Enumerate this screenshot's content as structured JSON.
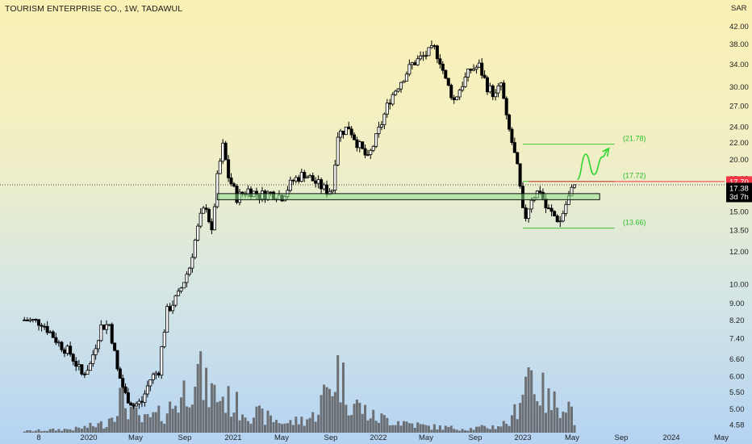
{
  "header": {
    "title": "TOURISM ENTERPRISE CO., 1W, TADAWUL"
  },
  "chart_data": {
    "type": "candlestick",
    "currency": "SAR",
    "y_scale": "log",
    "ylim": [
      4.5,
      44
    ],
    "y_ticks": [
      "42.00",
      "38.00",
      "34.00",
      "30.00",
      "27.00",
      "24.00",
      "22.00",
      "20.00",
      "18.00",
      "15.00",
      "13.50",
      "12.00",
      "10.00",
      "9.00",
      "8.20",
      "7.40",
      "6.60",
      "6.00",
      "5.50",
      "5.00",
      "4.58"
    ],
    "x_ticks": [
      {
        "label": "8",
        "date": "2019-09-01"
      },
      {
        "label": "2020",
        "date": "2020-01-01"
      },
      {
        "label": "May",
        "date": "2020-05-01"
      },
      {
        "label": "Sep",
        "date": "2020-09-01"
      },
      {
        "label": "2021",
        "date": "2021-01-01"
      },
      {
        "label": "May",
        "date": "2021-05-01"
      },
      {
        "label": "Sep",
        "date": "2021-09-01"
      },
      {
        "label": "2022",
        "date": "2022-01-01"
      },
      {
        "label": "May",
        "date": "2022-05-01"
      },
      {
        "label": "Sep",
        "date": "2022-09-01"
      },
      {
        "label": "2023",
        "date": "2023-01-01"
      },
      {
        "label": "May",
        "date": "2023-05-01"
      },
      {
        "label": "Sep",
        "date": "2023-09-01"
      },
      {
        "label": "2024",
        "date": "2024-01-01"
      },
      {
        "label": "May",
        "date": "2024-05-01"
      }
    ],
    "price_keypoints": [
      [
        "2019-07-28",
        8.2
      ],
      [
        "2019-09-08",
        8.1
      ],
      [
        "2019-10-20",
        7.2
      ],
      [
        "2019-11-17",
        6.8
      ],
      [
        "2019-12-15",
        6.05
      ],
      [
        "2020-01-05",
        6.4
      ],
      [
        "2020-02-02",
        7.9
      ],
      [
        "2020-02-23",
        8.0
      ],
      [
        "2020-03-15",
        6.2
      ],
      [
        "2020-04-05",
        5.4
      ],
      [
        "2020-04-26",
        5.1
      ],
      [
        "2020-05-17",
        5.2
      ],
      [
        "2020-06-07",
        5.9
      ],
      [
        "2020-06-28",
        6.2
      ],
      [
        "2020-07-19",
        8.6
      ],
      [
        "2020-08-16",
        9.4
      ],
      [
        "2020-09-13",
        11.0
      ],
      [
        "2020-10-11",
        14.5
      ],
      [
        "2020-10-25",
        15.5
      ],
      [
        "2020-11-08",
        13.2
      ],
      [
        "2020-11-22",
        18.0
      ],
      [
        "2020-12-06",
        21.5
      ],
      [
        "2020-12-20",
        18.2
      ],
      [
        "2021-01-10",
        16.2
      ],
      [
        "2021-02-07",
        16.9
      ],
      [
        "2021-03-07",
        16.4
      ],
      [
        "2021-04-04",
        16.6
      ],
      [
        "2021-05-02",
        16.3
      ],
      [
        "2021-05-30",
        17.8
      ],
      [
        "2021-06-27",
        18.5
      ],
      [
        "2021-07-25",
        17.6
      ],
      [
        "2021-08-22",
        16.8
      ],
      [
        "2021-09-05",
        17.0
      ],
      [
        "2021-09-19",
        23.0
      ],
      [
        "2021-10-17",
        24.0
      ],
      [
        "2021-11-07",
        22.0
      ],
      [
        "2021-12-05",
        20.0
      ],
      [
        "2021-12-26",
        22.5
      ],
      [
        "2022-01-09",
        24.5
      ],
      [
        "2022-01-30",
        28.0
      ],
      [
        "2022-02-27",
        31.0
      ],
      [
        "2022-03-27",
        34.0
      ],
      [
        "2022-04-24",
        35.5
      ],
      [
        "2022-05-22",
        37.0
      ],
      [
        "2022-06-05",
        34.8
      ],
      [
        "2022-06-19",
        31.0
      ],
      [
        "2022-07-10",
        27.8
      ],
      [
        "2022-07-31",
        30.5
      ],
      [
        "2022-08-21",
        33.0
      ],
      [
        "2022-09-11",
        33.6
      ],
      [
        "2022-10-02",
        30.0
      ],
      [
        "2022-10-23",
        28.5
      ],
      [
        "2022-11-06",
        30.5
      ],
      [
        "2022-11-20",
        25.0
      ],
      [
        "2022-12-04",
        22.0
      ],
      [
        "2022-12-18",
        19.0
      ],
      [
        "2023-01-01",
        14.9
      ],
      [
        "2023-01-08",
        14.6
      ],
      [
        "2023-01-22",
        16.2
      ],
      [
        "2023-02-12",
        16.9
      ],
      [
        "2023-02-26",
        15.3
      ],
      [
        "2023-03-19",
        14.6
      ],
      [
        "2023-04-02",
        14.2
      ],
      [
        "2023-04-16",
        15.6
      ],
      [
        "2023-04-30",
        16.8
      ],
      [
        "2023-05-07",
        17.38
      ]
    ],
    "volume_keypoints": [
      [
        "2019-07-28",
        0.02
      ],
      [
        "2019-12-01",
        0.05
      ],
      [
        "2020-02-16",
        0.12
      ],
      [
        "2020-03-22",
        0.45
      ],
      [
        "2020-05-17",
        0.15
      ],
      [
        "2020-07-12",
        0.25
      ],
      [
        "2020-08-23",
        0.45
      ],
      [
        "2020-09-27",
        0.85
      ],
      [
        "2020-10-25",
        0.55
      ],
      [
        "2020-12-06",
        0.45
      ],
      [
        "2021-01-24",
        0.3
      ],
      [
        "2021-03-21",
        0.2
      ],
      [
        "2021-05-16",
        0.12
      ],
      [
        "2021-07-18",
        0.2
      ],
      [
        "2021-09-19",
        0.8
      ],
      [
        "2021-10-24",
        0.4
      ],
      [
        "2021-12-19",
        0.2
      ],
      [
        "2022-02-20",
        0.15
      ],
      [
        "2022-05-01",
        0.08
      ],
      [
        "2022-08-14",
        0.05
      ],
      [
        "2022-10-23",
        0.08
      ],
      [
        "2022-12-04",
        0.15
      ],
      [
        "2022-12-25",
        0.5
      ],
      [
        "2023-01-15",
        0.85
      ],
      [
        "2023-02-05",
        0.6
      ],
      [
        "2023-03-12",
        0.35
      ],
      [
        "2023-04-09",
        0.45
      ],
      [
        "2023-04-30",
        0.3
      ],
      [
        "2023-05-07",
        0.08
      ]
    ],
    "current_price": "17.38",
    "countdown": "3d 7h",
    "horizontal_line": {
      "value": 17.7,
      "label": "17.70",
      "color": "#f23645"
    },
    "annotations": [
      {
        "label": "(21.78)",
        "value": 21.78,
        "from": "2023-01-01",
        "to": "2023-08-15"
      },
      {
        "label": "(17.72)",
        "value": 17.72,
        "from": "2023-01-01",
        "to": "2023-08-15"
      },
      {
        "label": "(13.66)",
        "value": 13.66,
        "from": "2023-01-01",
        "to": "2023-08-15"
      }
    ],
    "support_zone": {
      "low": 16.0,
      "high": 16.55,
      "from": "2020-11-22",
      "to": "2023-07-09"
    },
    "projection_path": [
      [
        "2023-05-14",
        17.9
      ],
      [
        "2023-06-04",
        20.6
      ],
      [
        "2023-06-25",
        18.4
      ],
      [
        "2023-07-16",
        20.3
      ],
      [
        "2023-07-30",
        21.1
      ]
    ],
    "colors": {
      "up": "#ffffff",
      "down": "#000000",
      "volume": "#5d5d5d",
      "annotation": "#3ec43e",
      "zone_fill": "#8fe08a",
      "price_tag": "#000000",
      "axis_text": "#222222"
    }
  }
}
